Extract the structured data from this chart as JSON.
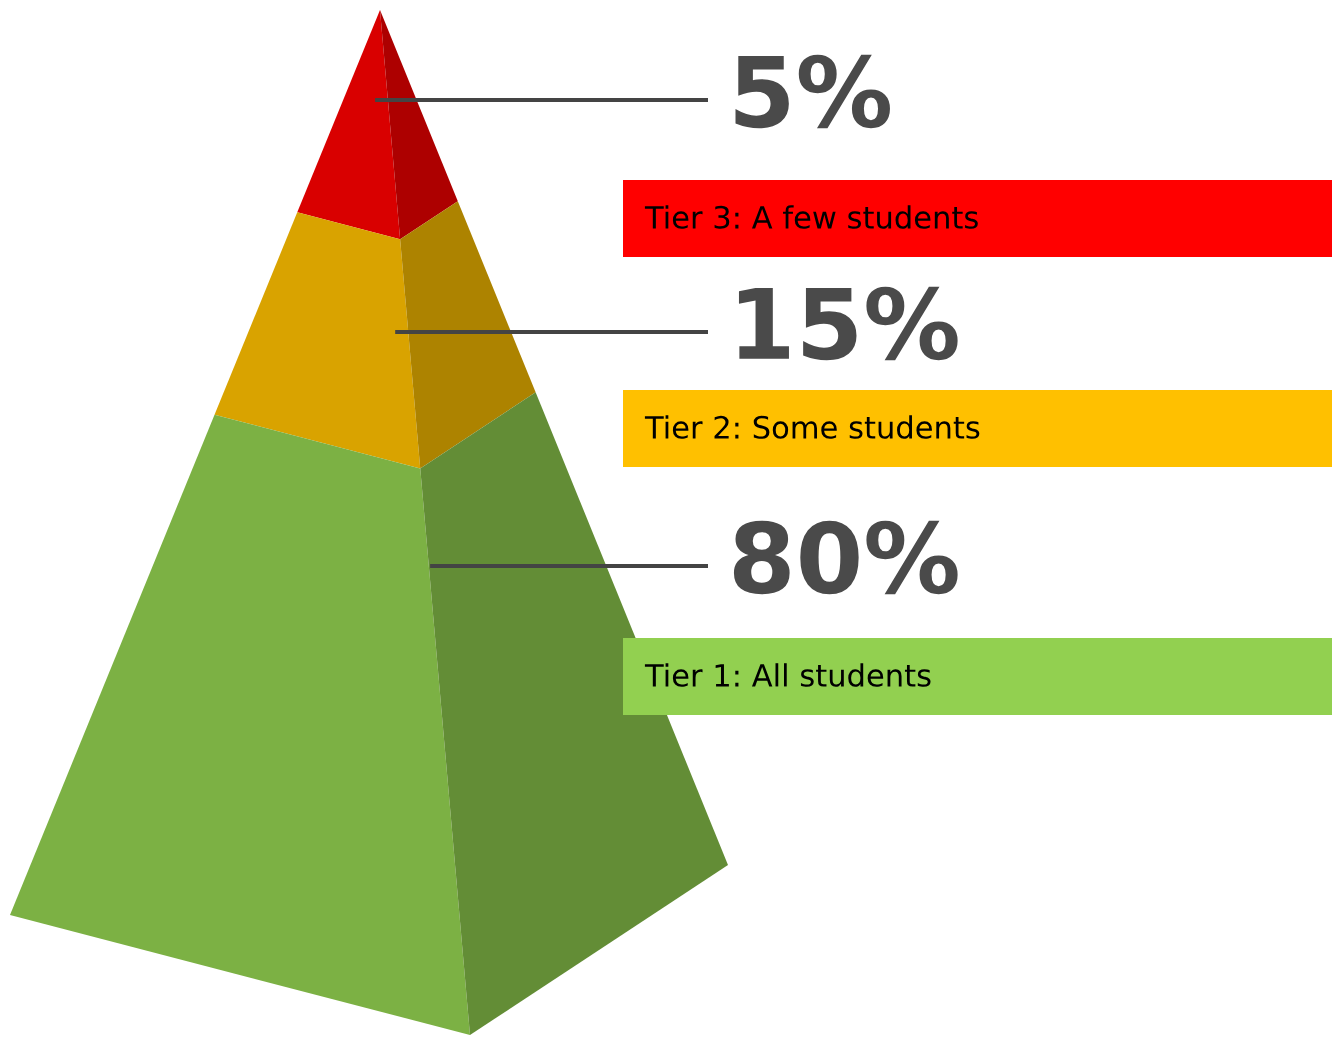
{
  "chart_data": {
    "type": "other",
    "categories": [
      "Tier 3: A few students",
      "Tier 2: Some students",
      "Tier 1: All students"
    ],
    "values": [
      5,
      15,
      80
    ],
    "value_labels": [
      "5%",
      "15%",
      "80%"
    ],
    "colors": [
      "#ff0000",
      "#ffc000",
      "#92d050"
    ]
  }
}
